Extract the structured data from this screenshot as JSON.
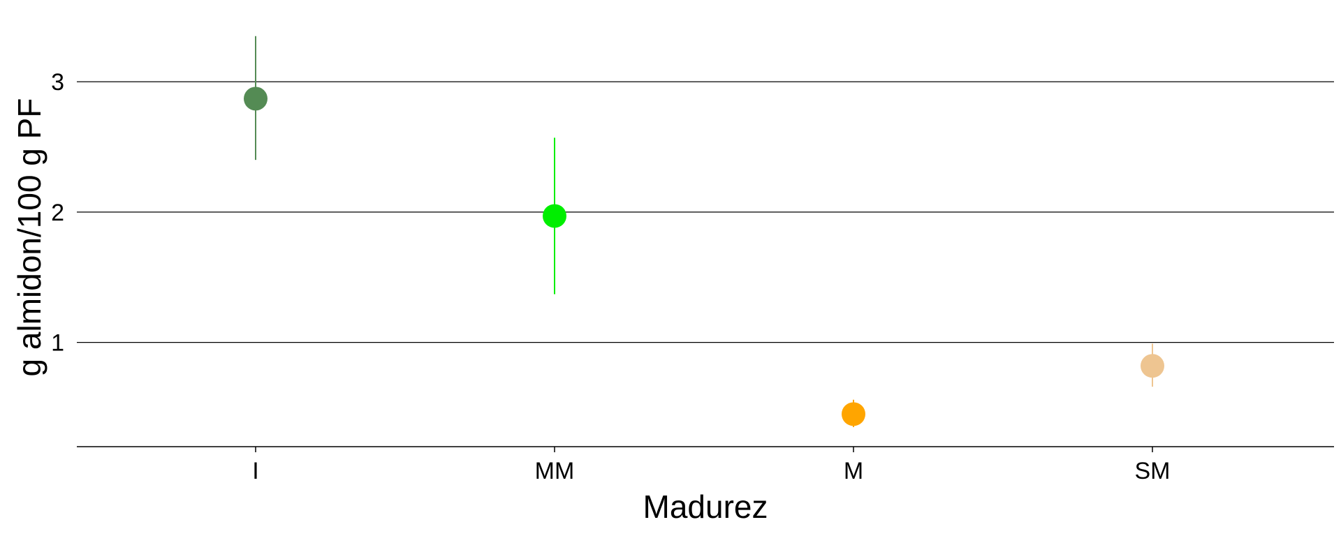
{
  "chart_data": {
    "type": "scatter",
    "title": "",
    "xlabel": "Madurez",
    "ylabel": "g almidon/100 g PF",
    "categories": [
      "I",
      "MM",
      "M",
      "SM"
    ],
    "points": [
      {
        "category": "I",
        "y": 2.87,
        "lower": 2.4,
        "upper": 3.35,
        "color": "#548b54"
      },
      {
        "category": "MM",
        "y": 1.97,
        "lower": 1.37,
        "upper": 2.57,
        "color": "#00ee00"
      },
      {
        "category": "M",
        "y": 0.45,
        "lower": 0.35,
        "upper": 0.56,
        "color": "#ffa500"
      },
      {
        "category": "SM",
        "y": 0.82,
        "lower": 0.66,
        "upper": 0.99,
        "color": "#eec591"
      }
    ],
    "yticks": [
      1,
      2,
      3
    ],
    "ylim": [
      0.2,
      3.52
    ],
    "grid": "horizontal",
    "legend": "none"
  }
}
